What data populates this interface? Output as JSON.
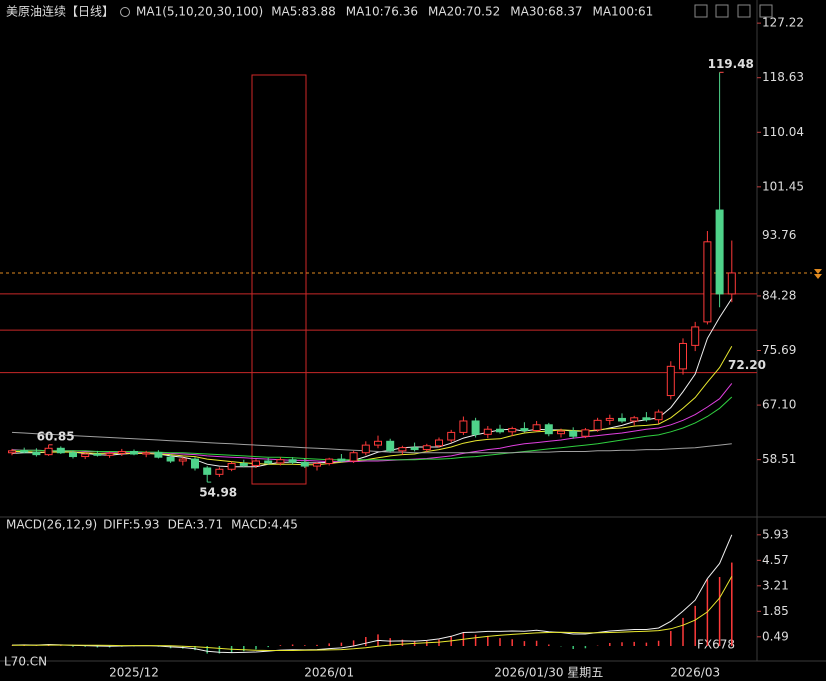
{
  "chart_data": [
    {
      "type": "candlestick",
      "title": "美原油连续【日线】",
      "ma_label": "MA1(5,10,20,30,100)",
      "categories": [
        null,
        null,
        null,
        null,
        null,
        null,
        null,
        null,
        null,
        null,
        "2025/12",
        null,
        null,
        null,
        null,
        null,
        null,
        null,
        null,
        null,
        null,
        null,
        null,
        null,
        null,
        null,
        "2026/01",
        null,
        null,
        null,
        null,
        null,
        null,
        null,
        null,
        null,
        null,
        null,
        null,
        null,
        null,
        null,
        null,
        null,
        "2026/01/30 星期五",
        null,
        null,
        null,
        null,
        null,
        null,
        null,
        null,
        null,
        null,
        null,
        "2026/03",
        null,
        null,
        null
      ],
      "open": [
        59.6,
        59.9,
        59.7,
        59.3,
        60.3,
        59.6,
        59.0,
        59.4,
        59.2,
        59.5,
        59.8,
        59.4,
        59.6,
        58.9,
        58.3,
        58.6,
        57.2,
        56.2,
        57.0,
        57.9,
        57.6,
        58.3,
        58.0,
        58.5,
        58.1,
        57.5,
        57.9,
        58.6,
        58.3,
        59.6,
        60.8,
        61.4,
        59.9,
        60.4,
        60.1,
        60.7,
        61.6,
        62.8,
        64.6,
        62.5,
        63.3,
        62.9,
        63.4,
        63.1,
        64.0,
        62.6,
        63.0,
        62.2,
        63.2,
        64.7,
        65.0,
        64.6,
        65.1,
        64.8,
        68.6,
        72.8,
        76.5,
        80.2,
        97.8,
        84.6
      ],
      "high": [
        60.2,
        60.4,
        60.3,
        60.85,
        60.6,
        59.9,
        59.6,
        59.9,
        59.8,
        60.2,
        60.1,
        59.9,
        60.0,
        59.3,
        58.9,
        58.9,
        57.5,
        57.3,
        58.2,
        58.5,
        58.6,
        58.8,
        58.9,
        58.9,
        58.7,
        58.1,
        58.8,
        59.4,
        59.9,
        61.4,
        62.3,
        61.8,
        60.7,
        61.2,
        61.0,
        62.0,
        63.2,
        65.3,
        65.1,
        63.8,
        64.0,
        63.7,
        64.4,
        64.6,
        64.3,
        63.4,
        63.6,
        63.5,
        65.1,
        65.6,
        65.8,
        65.4,
        66.0,
        66.4,
        74.0,
        77.6,
        80.2,
        94.5,
        119.48,
        93.0
      ],
      "low": [
        59.2,
        59.5,
        59.0,
        59.1,
        59.4,
        58.7,
        58.6,
        59.0,
        58.8,
        59.1,
        59.2,
        58.9,
        58.7,
        58.0,
        57.6,
        56.8,
        54.98,
        55.8,
        56.7,
        57.3,
        57.2,
        57.7,
        57.6,
        57.8,
        57.2,
        56.8,
        57.6,
        58.1,
        58.0,
        59.2,
        60.3,
        59.6,
        59.3,
        59.8,
        59.7,
        60.4,
        61.2,
        62.4,
        62.0,
        61.9,
        62.6,
        62.2,
        62.8,
        62.9,
        62.2,
        62.0,
        61.8,
        61.9,
        62.9,
        64.0,
        64.3,
        63.9,
        64.5,
        64.2,
        68.0,
        71.9,
        75.6,
        79.8,
        82.5,
        83.3
      ],
      "close": [
        59.9,
        59.7,
        59.3,
        60.3,
        59.6,
        59.0,
        59.4,
        59.2,
        59.5,
        59.8,
        59.4,
        59.6,
        58.9,
        58.3,
        58.6,
        57.2,
        56.2,
        57.0,
        57.9,
        57.6,
        58.3,
        58.0,
        58.5,
        58.1,
        57.5,
        57.9,
        58.6,
        58.3,
        59.6,
        60.8,
        61.4,
        59.9,
        60.4,
        60.1,
        60.7,
        61.6,
        62.8,
        64.6,
        62.5,
        63.3,
        62.9,
        63.4,
        63.1,
        64.0,
        62.6,
        63.0,
        62.2,
        63.2,
        64.7,
        65.0,
        64.6,
        65.1,
        64.8,
        66.0,
        73.2,
        76.8,
        79.4,
        92.8,
        84.6,
        87.9
      ],
      "up_color": "#ff3a3a",
      "down_color": "#4fd38a",
      "series": [
        {
          "name": "MA5:83.88",
          "color": "#f0f0f0",
          "values": [
            59.5,
            59.6,
            59.6,
            59.7,
            59.8,
            59.7,
            59.5,
            59.3,
            59.2,
            59.4,
            59.5,
            59.5,
            59.4,
            59.1,
            58.9,
            58.5,
            57.8,
            57.5,
            57.4,
            57.4,
            57.4,
            57.8,
            58.1,
            58.1,
            58.0,
            58.0,
            58.1,
            58.2,
            58.4,
            59.0,
            59.7,
            60.0,
            60.4,
            60.5,
            60.5,
            60.5,
            61.1,
            61.9,
            62.4,
            62.8,
            63.2,
            63.3,
            63.0,
            63.3,
            63.2,
            63.2,
            63.0,
            63.0,
            63.1,
            63.5,
            63.9,
            64.5,
            64.8,
            65.1,
            66.7,
            69.2,
            72.0,
            77.6,
            80.9,
            83.88
          ]
        },
        {
          "name": "MA10:76.36",
          "color": "#e8e830",
          "values": [
            59.8,
            59.8,
            59.7,
            59.7,
            59.7,
            59.7,
            59.6,
            59.5,
            59.5,
            59.5,
            59.5,
            59.5,
            59.4,
            59.3,
            59.1,
            59.0,
            58.6,
            58.4,
            58.2,
            58.0,
            57.9,
            57.8,
            57.8,
            57.8,
            57.7,
            57.7,
            57.9,
            58.1,
            58.3,
            58.5,
            58.8,
            59.1,
            59.3,
            59.4,
            59.8,
            60.1,
            60.5,
            61.1,
            61.5,
            61.7,
            61.8,
            62.3,
            62.7,
            62.9,
            63.0,
            63.2,
            63.1,
            63.0,
            63.2,
            63.4,
            63.5,
            63.8,
            63.9,
            64.1,
            65.1,
            66.6,
            68.3,
            70.7,
            73.0,
            76.36
          ]
        },
        {
          "name": "MA20:70.52",
          "color": "#e040e0",
          "values": [
            60.1,
            60.0,
            60.0,
            59.9,
            59.9,
            59.9,
            59.8,
            59.8,
            59.7,
            59.7,
            59.7,
            59.6,
            59.6,
            59.5,
            59.4,
            59.3,
            59.1,
            59.0,
            58.9,
            58.8,
            58.7,
            58.6,
            58.5,
            58.4,
            58.4,
            58.3,
            58.2,
            58.2,
            58.2,
            58.3,
            58.3,
            58.4,
            58.5,
            58.6,
            58.7,
            58.9,
            59.1,
            59.5,
            59.8,
            60.1,
            60.3,
            60.7,
            61.0,
            61.2,
            61.4,
            61.6,
            61.9,
            62.1,
            62.3,
            62.5,
            62.7,
            63.0,
            63.3,
            63.5,
            64.0,
            64.7,
            65.6,
            66.8,
            68.1,
            70.52
          ]
        },
        {
          "name": "MA30:68.37",
          "color": "#30d040",
          "values": [
            60.0,
            60.0,
            60.0,
            59.9,
            59.9,
            59.9,
            59.9,
            59.8,
            59.8,
            59.8,
            59.8,
            59.7,
            59.7,
            59.6,
            59.6,
            59.5,
            59.4,
            59.3,
            59.2,
            59.1,
            59.0,
            58.9,
            58.9,
            58.8,
            58.7,
            58.6,
            58.5,
            58.5,
            58.5,
            58.5,
            58.5,
            58.5,
            58.5,
            58.5,
            58.6,
            58.6,
            58.7,
            58.9,
            59.0,
            59.2,
            59.4,
            59.6,
            59.8,
            60.0,
            60.2,
            60.4,
            60.6,
            60.8,
            61.0,
            61.3,
            61.6,
            61.9,
            62.2,
            62.4,
            62.9,
            63.5,
            64.3,
            65.3,
            66.6,
            68.37
          ]
        },
        {
          "name": "MA100:61",
          "color": "#a0a0a0",
          "values": [
            62.8,
            62.7,
            62.6,
            62.5,
            62.4,
            62.3,
            62.2,
            62.1,
            62.0,
            61.9,
            61.8,
            61.7,
            61.6,
            61.5,
            61.4,
            61.3,
            61.2,
            61.1,
            61.0,
            60.9,
            60.8,
            60.7,
            60.6,
            60.5,
            60.4,
            60.3,
            60.2,
            60.1,
            60.0,
            59.9,
            59.8,
            59.7,
            59.7,
            59.6,
            59.6,
            59.6,
            59.6,
            59.6,
            59.6,
            59.6,
            59.6,
            59.6,
            59.7,
            59.7,
            59.7,
            59.8,
            59.8,
            59.8,
            59.9,
            59.9,
            60.0,
            60.0,
            60.1,
            60.1,
            60.2,
            60.3,
            60.4,
            60.6,
            60.8,
            61
          ]
        }
      ],
      "ylim": [
        49.8,
        128.5
      ],
      "yticks": [
        58.51,
        {
          "value": 67.1,
          "label": "67.10"
        },
        75.69,
        84.28,
        101.45,
        110.04,
        118.63,
        127.22
      ],
      "axis_highlight": 93.76,
      "last_price": 87.9,
      "extremes": [
        119.48,
        60.85,
        54.98
      ],
      "hlines": [
        84.6,
        78.9,
        {
          "value": 72.2,
          "label": "72.20"
        }
      ],
      "watermarks": [
        "FX678",
        "L70.CN"
      ]
    },
    {
      "type": "macd",
      "title": "MACD(26,12,9)",
      "series": [
        {
          "name": "DIFF:5.93",
          "color": "#f0f0f0",
          "values": [
            0.05,
            0.06,
            0.05,
            0.08,
            0.06,
            0.03,
            0.02,
            0.0,
            -0.01,
            0.0,
            0.01,
            0.02,
            0.0,
            -0.05,
            -0.08,
            -0.15,
            -0.28,
            -0.33,
            -0.35,
            -0.34,
            -0.32,
            -0.27,
            -0.22,
            -0.2,
            -0.21,
            -0.19,
            -0.14,
            -0.1,
            0.0,
            0.15,
            0.3,
            0.26,
            0.27,
            0.26,
            0.3,
            0.38,
            0.52,
            0.72,
            0.74,
            0.78,
            0.78,
            0.8,
            0.79,
            0.84,
            0.76,
            0.72,
            0.64,
            0.64,
            0.72,
            0.8,
            0.84,
            0.88,
            0.88,
            0.96,
            1.32,
            1.86,
            2.45,
            3.6,
            4.4,
            5.93
          ]
        },
        {
          "name": "DEA:3.71",
          "color": "#e8e830",
          "values": [
            0.04,
            0.04,
            0.04,
            0.05,
            0.05,
            0.05,
            0.04,
            0.04,
            0.03,
            0.02,
            0.02,
            0.02,
            0.02,
            0.01,
            -0.01,
            -0.04,
            -0.08,
            -0.13,
            -0.17,
            -0.2,
            -0.23,
            -0.24,
            -0.24,
            -0.24,
            -0.23,
            -0.22,
            -0.21,
            -0.19,
            -0.15,
            -0.09,
            -0.01,
            0.05,
            0.1,
            0.14,
            0.17,
            0.21,
            0.27,
            0.36,
            0.44,
            0.51,
            0.57,
            0.62,
            0.66,
            0.7,
            0.72,
            0.73,
            0.72,
            0.7,
            0.71,
            0.72,
            0.74,
            0.77,
            0.79,
            0.82,
            0.92,
            1.11,
            1.38,
            1.82,
            2.56,
            3.71
          ]
        }
      ],
      "bars": {
        "name": "MACD:4.45",
        "color": "#e040e0",
        "pos_color": "#ff3a3a",
        "neg_color": "#3cc878",
        "values": [
          0.02,
          0.04,
          0.02,
          0.06,
          0.02,
          -0.04,
          -0.04,
          -0.08,
          -0.08,
          -0.04,
          -0.02,
          0,
          -0.04,
          -0.12,
          -0.14,
          -0.22,
          -0.4,
          -0.4,
          -0.36,
          -0.28,
          -0.18,
          -0.06,
          0.04,
          0.08,
          0.04,
          0.06,
          0.14,
          0.18,
          0.3,
          0.48,
          0.62,
          0.42,
          0.34,
          0.24,
          0.26,
          0.34,
          0.5,
          0.72,
          0.6,
          0.54,
          0.42,
          0.36,
          0.26,
          0.28,
          0.08,
          -0.02,
          -0.16,
          -0.12,
          0.02,
          0.16,
          0.2,
          0.22,
          0.18,
          0.28,
          0.8,
          1.5,
          2.14,
          3.56,
          3.68,
          4.45
        ]
      },
      "ylim": [
        -0.8,
        6.4
      ],
      "yticks": [
        0.49,
        1.85,
        3.21,
        4.57,
        5.93
      ]
    }
  ]
}
